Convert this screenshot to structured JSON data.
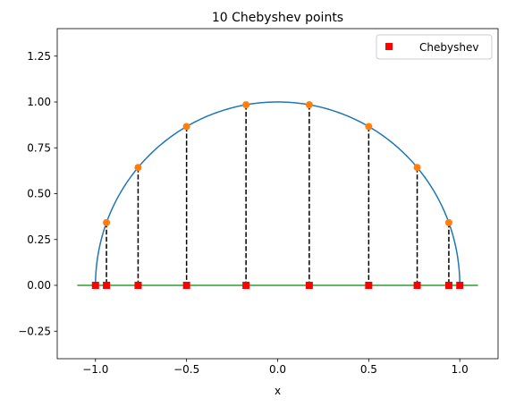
{
  "chart_data": {
    "type": "line",
    "title": "10 Chebyshev points",
    "xlabel": "x",
    "ylabel": "",
    "xlim": [
      -1.21,
      1.21
    ],
    "ylim": [
      -0.4,
      1.4
    ],
    "xticks": [
      -1.0,
      -0.5,
      0.0,
      0.5,
      1.0
    ],
    "xtick_labels": [
      "−1.0",
      "−0.5",
      "0.0",
      "0.5",
      "1.0"
    ],
    "yticks": [
      -0.25,
      0.0,
      0.25,
      0.5,
      0.75,
      1.0,
      1.25
    ],
    "ytick_labels": [
      "−0.25",
      "0.00",
      "0.25",
      "0.50",
      "0.75",
      "1.00",
      "1.25"
    ],
    "grid": false,
    "legend": {
      "location": "top-right",
      "entries": [
        "Chebyshev"
      ]
    },
    "semicircle": {
      "radius": 1,
      "color": "#1f77b4"
    },
    "baseline": {
      "x": [
        -1.1,
        1.1
      ],
      "y": 0,
      "color": "#2ca02c"
    },
    "circle_points": {
      "color": "#ff7f0e",
      "x": [
        -0.9397,
        -0.766,
        -0.5,
        -0.1736,
        0.1736,
        0.5,
        0.766,
        0.9397
      ],
      "y": [
        0.342,
        0.6428,
        0.866,
        0.9848,
        0.9848,
        0.866,
        0.6428,
        0.342
      ]
    },
    "series": [
      {
        "name": "Chebyshev",
        "color": "#ff0000",
        "x": [
          -1.0,
          -0.9397,
          -0.766,
          -0.5,
          -0.1736,
          0.1736,
          0.5,
          0.766,
          0.9397,
          1.0
        ],
        "y": [
          0,
          0,
          0,
          0,
          0,
          0,
          0,
          0,
          0,
          0
        ]
      }
    ],
    "projection_lines": {
      "style": "dashed",
      "color": "#000000"
    }
  }
}
